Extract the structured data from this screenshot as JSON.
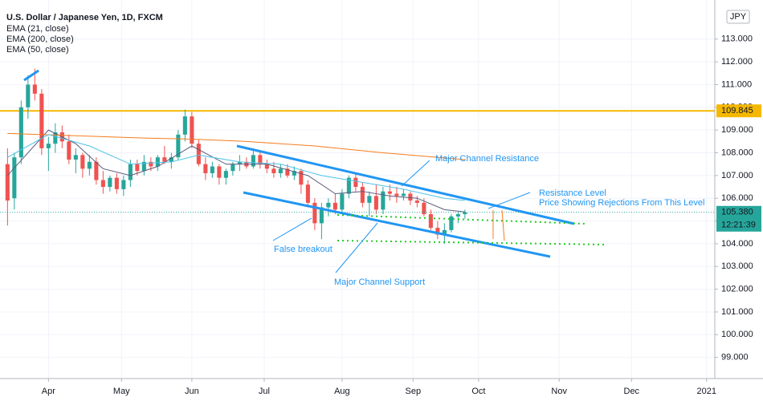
{
  "chart_data": {
    "type": "candlestick",
    "title": "U.S. Dollar / Japanese Yen, 1D, FXCM",
    "currency": "JPY",
    "up_color": "#26a69a",
    "down_color": "#ef5350",
    "grid": true,
    "xlim": [
      -1.1,
      103.6
    ],
    "xticks": [
      {
        "value": 6,
        "label": "Apr"
      },
      {
        "value": 16.7,
        "label": "May"
      },
      {
        "value": 27,
        "label": "Jun"
      },
      {
        "value": 37.6,
        "label": "Jul"
      },
      {
        "value": 49,
        "label": "Aug"
      },
      {
        "value": 59.4,
        "label": "Sep"
      },
      {
        "value": 69,
        "label": "Oct"
      },
      {
        "value": 80.8,
        "label": "Nov"
      },
      {
        "value": 91.4,
        "label": "Dec"
      },
      {
        "value": 102.4,
        "label": "2021"
      }
    ],
    "ylim": [
      98.07,
      114.72
    ],
    "yticks": [
      {
        "value": 99,
        "label": "99.000"
      },
      {
        "value": 100,
        "label": "100.000"
      },
      {
        "value": 101,
        "label": "101.000"
      },
      {
        "value": 102,
        "label": "102.000"
      },
      {
        "value": 103,
        "label": "103.000"
      },
      {
        "value": 104,
        "label": "104.000"
      },
      {
        "value": 105,
        "label": "105.000"
      },
      {
        "value": 106,
        "label": "106.000"
      },
      {
        "value": 107,
        "label": "107.000"
      },
      {
        "value": 108,
        "label": "108.000"
      },
      {
        "value": 109,
        "label": "109.000"
      },
      {
        "value": 110,
        "label": "110.000"
      },
      {
        "value": 111,
        "label": "111.000"
      },
      {
        "value": 112,
        "label": "112.000"
      },
      {
        "value": 113,
        "label": "113.000"
      }
    ],
    "candles": [
      [
        107.5,
        108.2,
        104.8,
        105.9
      ],
      [
        106,
        108,
        105.5,
        107.8
      ],
      [
        107.8,
        110.3,
        107.5,
        110.0
      ],
      [
        110,
        111.4,
        109.5,
        111.0
      ],
      [
        111,
        111.7,
        110.3,
        110.6
      ],
      [
        110.6,
        110.8,
        107.9,
        108.2
      ],
      [
        108.2,
        108.7,
        107.2,
        108.4
      ],
      [
        108.4,
        109.3,
        108.0,
        108.9
      ],
      [
        108.9,
        109.2,
        108.2,
        108.5
      ],
      [
        108.5,
        108.8,
        107.5,
        107.7
      ],
      [
        107.7,
        108.2,
        107.1,
        107.9
      ],
      [
        107.9,
        108.0,
        106.9,
        107.3
      ],
      [
        107.3,
        107.9,
        107.0,
        107.6
      ],
      [
        107.6,
        107.8,
        106.6,
        106.8
      ],
      [
        106.8,
        107.2,
        106.2,
        106.5
      ],
      [
        106.5,
        107.0,
        106.3,
        106.9
      ],
      [
        106.9,
        107.1,
        106.2,
        106.4
      ],
      [
        106.4,
        107.0,
        106.1,
        106.8
      ],
      [
        106.8,
        107.7,
        106.5,
        107.5
      ],
      [
        107.5,
        107.7,
        107.0,
        107.2
      ],
      [
        107.2,
        107.9,
        107.0,
        107.6
      ],
      [
        107.6,
        107.8,
        107.2,
        107.4
      ],
      [
        107.4,
        107.9,
        107.2,
        107.8
      ],
      [
        107.8,
        108.3,
        107.5,
        107.6
      ],
      [
        107.6,
        108.0,
        107.3,
        107.8
      ],
      [
        107.8,
        109.0,
        107.7,
        108.8
      ],
      [
        108.8,
        109.9,
        108.5,
        109.6
      ],
      [
        109.6,
        109.8,
        108.2,
        108.4
      ],
      [
        108.4,
        108.6,
        107.4,
        107.5
      ],
      [
        107.5,
        107.8,
        106.8,
        107.1
      ],
      [
        107.1,
        107.6,
        106.9,
        107.4
      ],
      [
        107.4,
        107.5,
        106.6,
        106.9
      ],
      [
        106.9,
        107.3,
        106.6,
        107.2
      ],
      [
        107.2,
        107.6,
        107.0,
        107.5
      ],
      [
        107.5,
        107.9,
        107.2,
        107.6
      ],
      [
        107.6,
        107.8,
        107.3,
        107.4
      ],
      [
        107.4,
        108.2,
        107.3,
        107.9
      ],
      [
        107.9,
        108.1,
        107.3,
        107.5
      ],
      [
        107.5,
        107.7,
        107.1,
        107.3
      ],
      [
        107.3,
        107.6,
        106.9,
        107.1
      ],
      [
        107.1,
        107.5,
        106.9,
        107.3
      ],
      [
        107.3,
        107.5,
        106.9,
        107.0
      ],
      [
        107.0,
        107.4,
        106.8,
        107.2
      ],
      [
        107.2,
        107.3,
        106.2,
        106.6
      ],
      [
        106.6,
        106.8,
        105.6,
        105.8
      ],
      [
        105.8,
        106.0,
        104.6,
        104.9
      ],
      [
        104.9,
        105.8,
        104.2,
        105.6
      ],
      [
        105.6,
        106.0,
        105.2,
        105.8
      ],
      [
        105.8,
        106.2,
        105.3,
        105.5
      ],
      [
        105.5,
        106.4,
        105.3,
        106.2
      ],
      [
        106.2,
        107.0,
        106.0,
        106.9
      ],
      [
        106.9,
        107.1,
        106.3,
        106.5
      ],
      [
        106.5,
        106.7,
        105.6,
        105.8
      ],
      [
        105.8,
        106.3,
        105.2,
        106.1
      ],
      [
        106.1,
        106.6,
        105.3,
        105.5
      ],
      [
        105.5,
        106.5,
        105.3,
        106.3
      ],
      [
        106.3,
        106.6,
        105.9,
        106.2
      ],
      [
        106.2,
        106.5,
        105.8,
        106.1
      ],
      [
        106.1,
        106.4,
        105.9,
        106.2
      ],
      [
        106.2,
        106.3,
        105.7,
        105.9
      ],
      [
        105.9,
        106.1,
        105.6,
        105.8
      ],
      [
        105.8,
        106.0,
        105.2,
        105.3
      ],
      [
        105.3,
        105.5,
        104.6,
        104.7
      ],
      [
        104.7,
        105.0,
        104.2,
        104.4
      ],
      [
        104.4,
        104.9,
        104.0,
        104.6
      ],
      [
        104.6,
        105.3,
        104.5,
        105.2
      ],
      [
        105.2,
        105.4,
        104.9,
        105.3
      ],
      [
        105.3,
        105.5,
        105.1,
        105.38
      ]
    ],
    "series": [
      {
        "name": "EMA (21, close)",
        "color": "#5b5b7e",
        "x": [
          0,
          6,
          10,
          14,
          18,
          22,
          27,
          32,
          38,
          44,
          48,
          52,
          56,
          60,
          64,
          67
        ],
        "values": [
          107.0,
          109.0,
          108.4,
          107.3,
          107.0,
          107.4,
          108.3,
          107.5,
          107.5,
          107.0,
          106.2,
          106.3,
          106.1,
          106.0,
          105.5,
          105.4
        ]
      },
      {
        "name": "EMA (200, close)",
        "color": "#f57c1f",
        "x": [
          0,
          10,
          20,
          27,
          35,
          45,
          55,
          67
        ],
        "values": [
          108.85,
          108.75,
          108.65,
          108.6,
          108.5,
          108.3,
          108.0,
          107.7
        ]
      },
      {
        "name": "EMA (50, close)",
        "color": "#4fc3e8",
        "x": [
          0,
          6,
          12,
          18,
          24,
          28,
          34,
          40,
          46,
          52,
          58,
          64,
          67
        ],
        "values": [
          107.8,
          108.8,
          108.3,
          107.5,
          107.6,
          107.9,
          107.6,
          107.5,
          107.0,
          106.7,
          106.4,
          106.0,
          105.9
        ]
      }
    ],
    "hline": {
      "value": 109.845,
      "color": "#f5b800"
    },
    "last_price": {
      "value": 105.38,
      "label": "105.380"
    },
    "countdown": "12:21:39",
    "annotations": [
      "Major Channel Resistance",
      "Resistance Level",
      "Price Showing  Rejections From This Level",
      "False breakout",
      "Major Channel Support"
    ]
  }
}
